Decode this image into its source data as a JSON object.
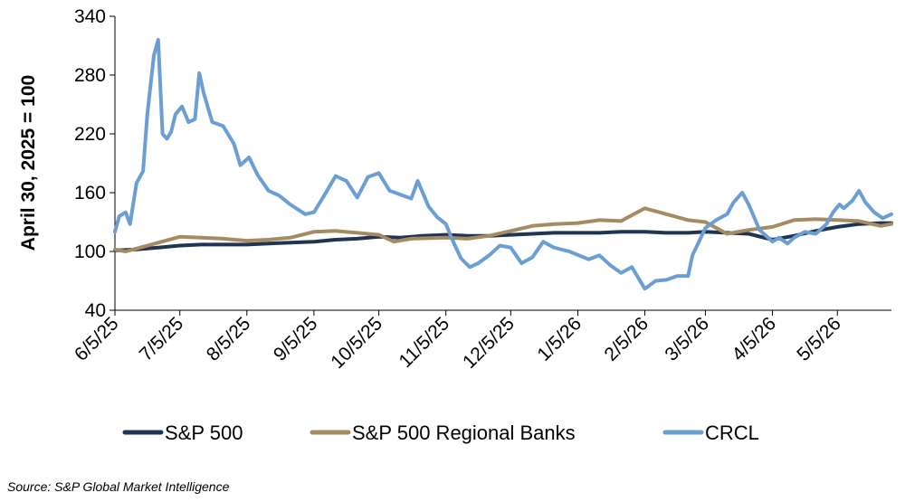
{
  "chart_data": {
    "type": "line",
    "title": "",
    "xlabel": "",
    "ylabel": "April 30, 2025 = 100",
    "ylim": [
      40,
      340
    ],
    "yticks": [
      40,
      100,
      160,
      220,
      280,
      340
    ],
    "xlim": [
      "2025-06-05",
      "2026-05-30"
    ],
    "xticks": [
      {
        "date": "2025-06-05",
        "label": "6/5/25"
      },
      {
        "date": "2025-07-05",
        "label": "7/5/25"
      },
      {
        "date": "2025-08-05",
        "label": "8/5/25"
      },
      {
        "date": "2025-09-05",
        "label": "9/5/25"
      },
      {
        "date": "2025-10-05",
        "label": "10/5/25"
      },
      {
        "date": "2025-11-05",
        "label": "11/5/25"
      },
      {
        "date": "2025-12-05",
        "label": "12/5/25"
      },
      {
        "date": "2026-01-05",
        "label": "1/5/26"
      },
      {
        "date": "2026-02-05",
        "label": "2/5/26"
      },
      {
        "date": "2026-03-05",
        "label": "3/5/26"
      },
      {
        "date": "2026-04-05",
        "label": "4/5/26"
      },
      {
        "date": "2026-05-05",
        "label": "5/5/26"
      }
    ],
    "legend_position": "bottom",
    "grid": false,
    "series": [
      {
        "name": "S&P 500",
        "color": "#1f3552",
        "points": [
          [
            "2025-06-05",
            101
          ],
          [
            "2025-06-15",
            102
          ],
          [
            "2025-06-25",
            104
          ],
          [
            "2025-07-05",
            106
          ],
          [
            "2025-07-15",
            107
          ],
          [
            "2025-07-25",
            107
          ],
          [
            "2025-08-05",
            107
          ],
          [
            "2025-08-15",
            108
          ],
          [
            "2025-08-25",
            109
          ],
          [
            "2025-09-05",
            110
          ],
          [
            "2025-09-15",
            112
          ],
          [
            "2025-09-25",
            113
          ],
          [
            "2025-10-05",
            115
          ],
          [
            "2025-10-15",
            114
          ],
          [
            "2025-10-25",
            116
          ],
          [
            "2025-11-05",
            117
          ],
          [
            "2025-11-15",
            116
          ],
          [
            "2025-11-25",
            116
          ],
          [
            "2025-12-05",
            117
          ],
          [
            "2025-12-15",
            118
          ],
          [
            "2025-12-25",
            119
          ],
          [
            "2026-01-05",
            119
          ],
          [
            "2026-01-15",
            119
          ],
          [
            "2026-01-25",
            120
          ],
          [
            "2026-02-05",
            120
          ],
          [
            "2026-02-15",
            119
          ],
          [
            "2026-02-25",
            119
          ],
          [
            "2026-03-05",
            120
          ],
          [
            "2026-03-15",
            119
          ],
          [
            "2026-03-25",
            118
          ],
          [
            "2026-04-05",
            112
          ],
          [
            "2026-04-15",
            116
          ],
          [
            "2026-04-25",
            121
          ],
          [
            "2026-05-05",
            125
          ],
          [
            "2026-05-15",
            128
          ],
          [
            "2026-05-25",
            129
          ],
          [
            "2026-05-30",
            129
          ]
        ]
      },
      {
        "name": "S&P 500 Regional Banks",
        "color": "#a58b62",
        "points": [
          [
            "2025-06-05",
            102
          ],
          [
            "2025-06-10",
            100
          ],
          [
            "2025-06-15",
            103
          ],
          [
            "2025-06-25",
            109
          ],
          [
            "2025-07-05",
            115
          ],
          [
            "2025-07-15",
            114
          ],
          [
            "2025-07-25",
            113
          ],
          [
            "2025-08-05",
            111
          ],
          [
            "2025-08-15",
            112
          ],
          [
            "2025-08-25",
            114
          ],
          [
            "2025-09-05",
            120
          ],
          [
            "2025-09-15",
            121
          ],
          [
            "2025-09-25",
            119
          ],
          [
            "2025-10-05",
            117
          ],
          [
            "2025-10-12",
            110
          ],
          [
            "2025-10-20",
            113
          ],
          [
            "2025-11-05",
            114
          ],
          [
            "2025-11-15",
            113
          ],
          [
            "2025-11-25",
            116
          ],
          [
            "2025-12-05",
            121
          ],
          [
            "2025-12-15",
            126
          ],
          [
            "2025-12-25",
            128
          ],
          [
            "2026-01-05",
            129
          ],
          [
            "2026-01-15",
            132
          ],
          [
            "2026-01-25",
            131
          ],
          [
            "2026-02-05",
            144
          ],
          [
            "2026-02-15",
            138
          ],
          [
            "2026-02-25",
            132
          ],
          [
            "2026-03-05",
            130
          ],
          [
            "2026-03-15",
            118
          ],
          [
            "2026-03-25",
            122
          ],
          [
            "2026-04-05",
            125
          ],
          [
            "2026-04-15",
            132
          ],
          [
            "2026-04-25",
            133
          ],
          [
            "2026-05-05",
            132
          ],
          [
            "2026-05-15",
            131
          ],
          [
            "2026-05-25",
            126
          ],
          [
            "2026-05-30",
            128
          ]
        ]
      },
      {
        "name": "CRCL",
        "color": "#6b9ed3",
        "points": [
          [
            "2025-06-05",
            120
          ],
          [
            "2025-06-07",
            136
          ],
          [
            "2025-06-10",
            140
          ],
          [
            "2025-06-12",
            128
          ],
          [
            "2025-06-15",
            170
          ],
          [
            "2025-06-18",
            182
          ],
          [
            "2025-06-20",
            240
          ],
          [
            "2025-06-23",
            300
          ],
          [
            "2025-06-25",
            316
          ],
          [
            "2025-06-27",
            220
          ],
          [
            "2025-06-29",
            215
          ],
          [
            "2025-07-01",
            222
          ],
          [
            "2025-07-03",
            240
          ],
          [
            "2025-07-06",
            248
          ],
          [
            "2025-07-09",
            232
          ],
          [
            "2025-07-12",
            235
          ],
          [
            "2025-07-14",
            282
          ],
          [
            "2025-07-16",
            262
          ],
          [
            "2025-07-20",
            232
          ],
          [
            "2025-07-25",
            228
          ],
          [
            "2025-07-30",
            210
          ],
          [
            "2025-08-02",
            188
          ],
          [
            "2025-08-06",
            196
          ],
          [
            "2025-08-10",
            178
          ],
          [
            "2025-08-15",
            162
          ],
          [
            "2025-08-20",
            157
          ],
          [
            "2025-08-25",
            148
          ],
          [
            "2025-09-01",
            138
          ],
          [
            "2025-09-05",
            140
          ],
          [
            "2025-09-10",
            158
          ],
          [
            "2025-09-15",
            177
          ],
          [
            "2025-09-20",
            172
          ],
          [
            "2025-09-25",
            155
          ],
          [
            "2025-09-30",
            176
          ],
          [
            "2025-10-05",
            180
          ],
          [
            "2025-10-10",
            162
          ],
          [
            "2025-10-15",
            158
          ],
          [
            "2025-10-20",
            154
          ],
          [
            "2025-10-23",
            172
          ],
          [
            "2025-10-28",
            146
          ],
          [
            "2025-11-01",
            135
          ],
          [
            "2025-11-05",
            128
          ],
          [
            "2025-11-08",
            112
          ],
          [
            "2025-11-12",
            93
          ],
          [
            "2025-11-16",
            84
          ],
          [
            "2025-11-20",
            88
          ],
          [
            "2025-11-25",
            96
          ],
          [
            "2025-11-30",
            106
          ],
          [
            "2025-12-05",
            104
          ],
          [
            "2025-12-10",
            88
          ],
          [
            "2025-12-15",
            94
          ],
          [
            "2025-12-20",
            110
          ],
          [
            "2025-12-25",
            104
          ],
          [
            "2026-01-01",
            100
          ],
          [
            "2026-01-10",
            92
          ],
          [
            "2026-01-15",
            96
          ],
          [
            "2026-01-20",
            86
          ],
          [
            "2026-01-25",
            78
          ],
          [
            "2026-01-30",
            84
          ],
          [
            "2026-02-05",
            62
          ],
          [
            "2026-02-10",
            70
          ],
          [
            "2026-02-15",
            71
          ],
          [
            "2026-02-20",
            75
          ],
          [
            "2026-02-25",
            75
          ],
          [
            "2026-02-27",
            96
          ],
          [
            "2026-03-02",
            110
          ],
          [
            "2026-03-05",
            124
          ],
          [
            "2026-03-10",
            132
          ],
          [
            "2026-03-15",
            138
          ],
          [
            "2026-03-18",
            150
          ],
          [
            "2026-03-22",
            160
          ],
          [
            "2026-03-25",
            148
          ],
          [
            "2026-03-30",
            122
          ],
          [
            "2026-04-05",
            110
          ],
          [
            "2026-04-08",
            114
          ],
          [
            "2026-04-12",
            108
          ],
          [
            "2026-04-15",
            114
          ],
          [
            "2026-04-20",
            120
          ],
          [
            "2026-04-25",
            118
          ],
          [
            "2026-04-30",
            128
          ],
          [
            "2026-05-03",
            140
          ],
          [
            "2026-05-06",
            148
          ],
          [
            "2026-05-08",
            144
          ],
          [
            "2026-05-12",
            152
          ],
          [
            "2026-05-15",
            162
          ],
          [
            "2026-05-18",
            150
          ],
          [
            "2026-05-22",
            140
          ],
          [
            "2026-05-26",
            134
          ],
          [
            "2026-05-30",
            138
          ]
        ]
      }
    ]
  },
  "source_text": "Source: S&P Global Market Intelligence"
}
